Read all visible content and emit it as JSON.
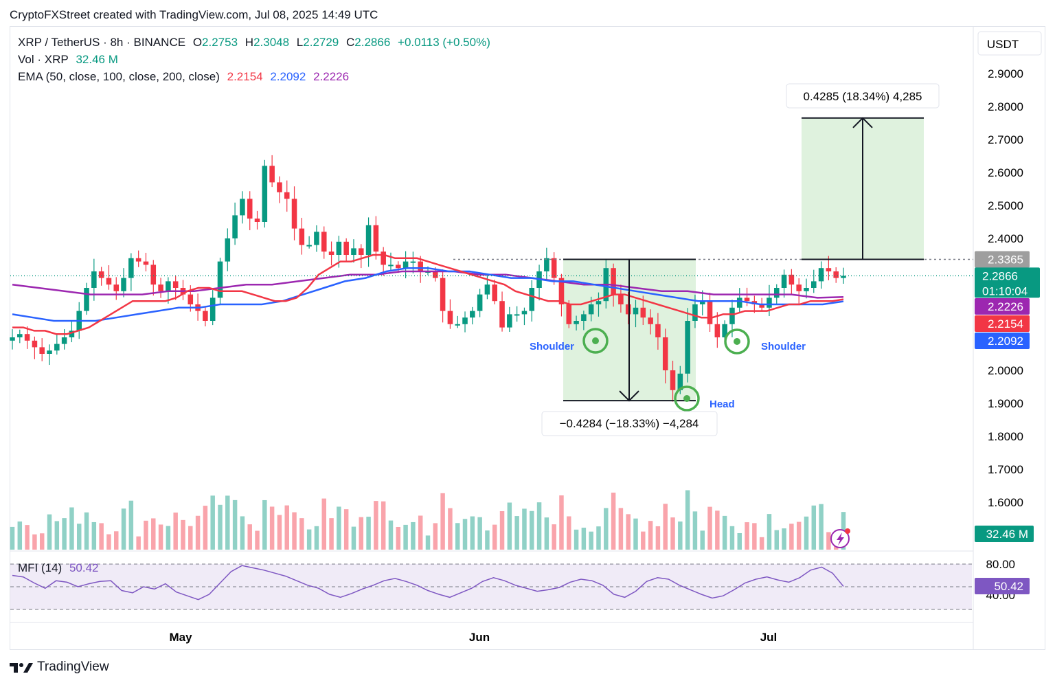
{
  "caption": "CryptoFXStreet created with TradingView.com, Jul 08, 2025 14:49 UTC",
  "legend": {
    "symbol": "XRP / TetherUS · 8h · BINANCE",
    "o_label": "O",
    "o": "2.2753",
    "h_label": "H",
    "h": "2.3048",
    "l_label": "L",
    "l": "2.2729",
    "c_label": "C",
    "c": "2.2866",
    "change": "+0.0113 (+0.50%)",
    "vol_label": "Vol · XRP",
    "vol": "32.46 M",
    "ema_label": "EMA (50, close, 100, close, 200, close)",
    "ema50": "2.2154",
    "ema100": "2.2092",
    "ema200": "2.2226"
  },
  "colors": {
    "up": "#089981",
    "down": "#f23645",
    "ema50": "#f23645",
    "ema100": "#2962ff",
    "ema200": "#9c27b0",
    "mfi": "#7e57c2",
    "zone": "#d9f0d8",
    "marker": "#4caf50",
    "pattern_text": "#2962ff"
  },
  "chart_data": {
    "type": "candlestick",
    "symbol": "XRP / TetherUS",
    "interval": "8h",
    "exchange": "BINANCE",
    "currency": "USDT",
    "ylim": [
      1.5,
      2.95
    ],
    "y_ticks": [
      "2.9000",
      "2.8000",
      "2.7000",
      "2.6000",
      "2.5000",
      "2.4000",
      "2.0000",
      "1.9000",
      "1.8000",
      "1.7000",
      "1.6000"
    ],
    "x_ticks": [
      "May",
      "Jun",
      "Jul"
    ],
    "close_series": [
      2.1,
      2.11,
      2.09,
      2.07,
      2.05,
      2.06,
      2.08,
      2.1,
      2.12,
      2.18,
      2.25,
      2.3,
      2.28,
      2.26,
      2.24,
      2.28,
      2.34,
      2.33,
      2.32,
      2.26,
      2.24,
      2.27,
      2.25,
      2.23,
      2.2,
      2.18,
      2.15,
      2.22,
      2.33,
      2.4,
      2.47,
      2.52,
      2.46,
      2.45,
      2.62,
      2.57,
      2.54,
      2.52,
      2.43,
      2.38,
      2.38,
      2.42,
      2.36,
      2.35,
      2.39,
      2.35,
      2.37,
      2.35,
      2.44,
      2.36,
      2.32,
      2.32,
      2.31,
      2.33,
      2.33,
      2.3,
      2.3,
      2.28,
      2.18,
      2.14,
      2.14,
      2.16,
      2.18,
      2.23,
      2.26,
      2.21,
      2.13,
      2.17,
      2.17,
      2.18,
      2.25,
      2.3,
      2.34,
      2.28,
      2.2,
      2.14,
      2.15,
      2.17,
      2.2,
      2.21,
      2.31,
      2.23,
      2.2,
      2.17,
      2.19,
      2.16,
      2.14,
      2.1,
      2.0,
      1.94,
      1.99,
      2.15,
      2.2,
      2.21,
      2.14,
      2.1,
      2.14,
      2.19,
      2.22,
      2.21,
      2.2,
      2.19,
      2.22,
      2.25,
      2.29,
      2.26,
      2.24,
      2.25,
      2.27,
      2.31,
      2.3,
      2.28,
      2.2866
    ],
    "ema50_series": [
      2.13,
      2.13,
      2.12,
      2.12,
      2.11,
      2.11,
      2.12,
      2.13,
      2.15,
      2.17,
      2.19,
      2.21,
      2.21,
      2.21,
      2.21,
      2.22,
      2.24,
      2.25,
      2.25,
      2.24,
      2.24,
      2.24,
      2.23,
      2.22,
      2.21,
      2.21,
      2.22,
      2.25,
      2.29,
      2.31,
      2.33,
      2.33,
      2.34,
      2.35,
      2.35,
      2.34,
      2.34,
      2.34,
      2.33,
      2.32,
      2.31,
      2.3,
      2.29,
      2.28,
      2.27,
      2.26,
      2.24,
      2.23,
      2.22,
      2.21,
      2.21,
      2.2,
      2.2,
      2.21,
      2.22,
      2.23,
      2.23,
      2.22,
      2.21,
      2.2,
      2.19,
      2.18,
      2.17,
      2.16,
      2.16,
      2.17,
      2.17,
      2.18,
      2.18,
      2.18,
      2.19,
      2.2,
      2.2,
      2.21,
      2.21,
      2.21,
      2.2154
    ],
    "ema100_series": [
      2.17,
      2.16,
      2.15,
      2.15,
      2.15,
      2.16,
      2.17,
      2.18,
      2.19,
      2.19,
      2.2,
      2.2,
      2.2,
      2.21,
      2.23,
      2.25,
      2.27,
      2.28,
      2.3,
      2.31,
      2.31,
      2.3,
      2.3,
      2.29,
      2.28,
      2.28,
      2.27,
      2.27,
      2.26,
      2.25,
      2.24,
      2.23,
      2.22,
      2.21,
      2.21,
      2.21,
      2.2,
      2.2,
      2.2,
      2.2,
      2.2092
    ],
    "ema200_series": [
      2.26,
      2.25,
      2.24,
      2.23,
      2.23,
      2.23,
      2.24,
      2.24,
      2.25,
      2.26,
      2.26,
      2.27,
      2.28,
      2.29,
      2.29,
      2.3,
      2.3,
      2.3,
      2.29,
      2.29,
      2.28,
      2.27,
      2.26,
      2.26,
      2.25,
      2.24,
      2.24,
      2.23,
      2.23,
      2.23,
      2.23,
      2.22,
      2.2226
    ],
    "volume_unit": "M",
    "mfi_series": [
      65,
      63,
      55,
      48,
      58,
      56,
      50,
      54,
      57,
      58,
      45,
      42,
      50,
      47,
      54,
      43,
      38,
      33,
      40,
      55,
      70,
      78,
      75,
      72,
      68,
      64,
      58,
      52,
      48,
      40,
      36,
      41,
      47,
      52,
      58,
      61,
      57,
      52,
      45,
      40,
      36,
      42,
      48,
      57,
      62,
      58,
      52,
      48,
      44,
      46,
      49,
      56,
      60,
      58,
      52,
      40,
      36,
      44,
      57,
      62,
      60,
      52,
      46,
      40,
      35,
      38,
      46,
      55,
      60,
      63,
      59,
      56,
      62,
      72,
      76,
      68,
      50.42
    ],
    "price_markers": {
      "current": "2.2866",
      "countdown": "01:10:04",
      "neckline": "2.3365",
      "volume": "32.46 M",
      "mfi_value": "50.42"
    },
    "mfi": {
      "label": "MFI (14)",
      "value": "50.42",
      "upper": 80,
      "middle": 50,
      "lower": 20,
      "y_ticks": [
        "80.00",
        "40.00"
      ]
    },
    "annotations": {
      "shoulder_left": "Shoulder",
      "head": "Head",
      "shoulder_right": "Shoulder",
      "measure_down": "−0.4284 (−18.33%) −4,284",
      "measure_up": "0.4285 (18.34%) 4,285",
      "neckline_price": 2.3365,
      "measure_low": 1.9081,
      "target_price": 2.765
    }
  },
  "footer": {
    "brand": "TradingView"
  }
}
